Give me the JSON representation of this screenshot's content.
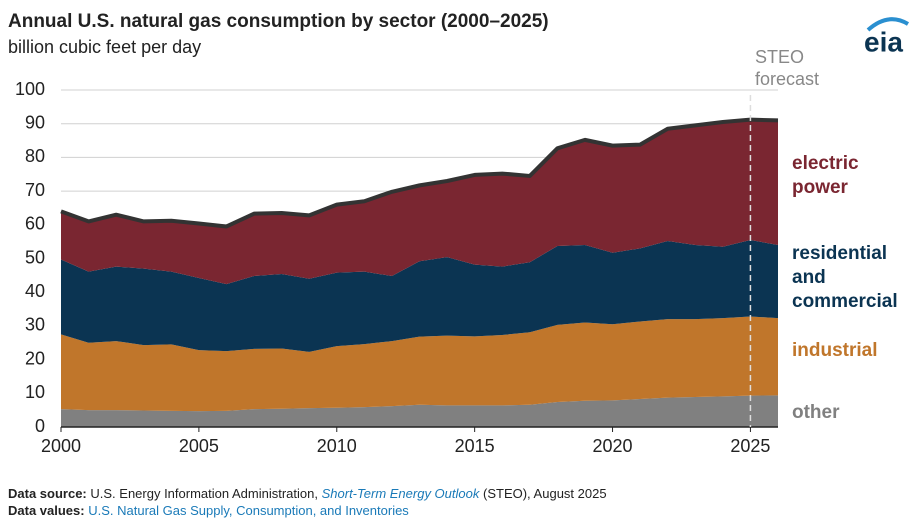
{
  "chart_data": {
    "type": "stacked-area",
    "title": "Annual U.S. natural gas consumption by sector (2000–2025)",
    "subtitle": "billion cubic feet per day",
    "x": [
      2000,
      2001,
      2002,
      2003,
      2004,
      2005,
      2006,
      2007,
      2008,
      2009,
      2010,
      2011,
      2012,
      2013,
      2014,
      2015,
      2016,
      2017,
      2018,
      2019,
      2020,
      2021,
      2022,
      2023,
      2024,
      2025,
      2026
    ],
    "series": [
      {
        "name": "other",
        "color": "#808080",
        "values": [
          5.3,
          5.0,
          5.0,
          4.9,
          4.8,
          4.7,
          4.8,
          5.3,
          5.4,
          5.6,
          5.7,
          5.9,
          6.2,
          6.6,
          6.4,
          6.4,
          6.4,
          6.6,
          7.4,
          7.8,
          7.9,
          8.3,
          8.7,
          8.9,
          9.1,
          9.3,
          9.4
        ]
      },
      {
        "name": "industrial",
        "color": "#c0762b",
        "values": [
          22.2,
          20.0,
          20.5,
          19.4,
          19.7,
          18.1,
          17.7,
          17.9,
          17.9,
          16.7,
          18.3,
          18.7,
          19.3,
          20.2,
          20.7,
          20.5,
          20.9,
          21.5,
          22.9,
          23.2,
          22.6,
          23.0,
          23.3,
          23.1,
          23.2,
          23.5,
          22.9
        ]
      },
      {
        "name": "residential and commercial",
        "color": "#0b3452",
        "values": [
          22.2,
          21.1,
          22.1,
          22.7,
          21.6,
          21.4,
          19.9,
          21.6,
          22.1,
          21.7,
          21.8,
          21.5,
          19.3,
          22.4,
          23.3,
          21.3,
          20.3,
          20.8,
          23.4,
          23.0,
          21.2,
          21.7,
          23.2,
          22.0,
          21.2,
          22.7,
          21.7
        ]
      },
      {
        "name": "electric power",
        "color": "#7a2631",
        "values": [
          14.3,
          14.9,
          15.4,
          14.0,
          15.1,
          16.2,
          17.1,
          18.5,
          18.1,
          18.8,
          20.2,
          20.9,
          25.0,
          22.5,
          22.6,
          26.6,
          27.6,
          25.6,
          29.0,
          31.2,
          31.8,
          30.8,
          33.3,
          35.5,
          37.0,
          35.7,
          37.0
        ]
      }
    ],
    "xlim": [
      2000,
      2026
    ],
    "xticks": [
      2000,
      2005,
      2010,
      2015,
      2020,
      2025
    ],
    "ylim": [
      0,
      100
    ],
    "yticks": [
      0,
      10,
      20,
      30,
      40,
      50,
      60,
      70,
      80,
      90,
      100
    ],
    "grid": true,
    "annotation": {
      "text": "STEO forecast",
      "x": 2025
    }
  },
  "logo": "eia",
  "footer": {
    "source": {
      "label": "Data source:",
      "before": "U.S. Energy Information Administration,",
      "link": "Short-Term Energy Outlook",
      "after": "(STEO), August 2025"
    },
    "values": {
      "label": "Data values:",
      "link": "U.S. Natural Gas Supply, Consumption, and Inventories"
    }
  }
}
